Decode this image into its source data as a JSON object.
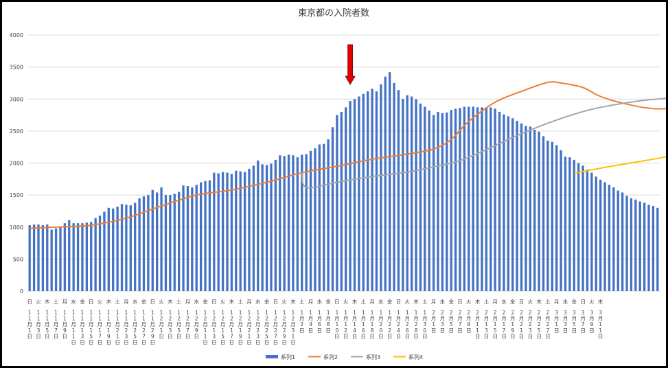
{
  "chart_data": {
    "type": "bar",
    "title": "東京都の入院者数",
    "ylim": [
      0,
      4000
    ],
    "yticks": [
      0,
      500,
      1000,
      1500,
      2000,
      2500,
      3000,
      3500,
      4000
    ],
    "grid": true,
    "legend_position": "bottom",
    "annotations": [
      {
        "type": "arrow",
        "color": "#e00000",
        "direction": "down",
        "category_index": 73
      }
    ],
    "weekday_labels": [
      "日",
      "火",
      "木",
      "土",
      "月",
      "水",
      "金",
      "日",
      "火",
      "木",
      "土",
      "月",
      "水",
      "金",
      "日",
      "火",
      "木",
      "土",
      "月",
      "水",
      "金",
      "日",
      "火",
      "木",
      "土",
      "月",
      "水",
      "金",
      "日",
      "火",
      "木",
      "土",
      "月",
      "水",
      "金",
      "日",
      "火",
      "木",
      "土",
      "月",
      "水",
      "金",
      "日",
      "火",
      "木",
      "土",
      "月",
      "水",
      "金",
      "日",
      "火",
      "木",
      "土",
      "月",
      "水",
      "金",
      "日",
      "火",
      "木",
      "土",
      "月",
      "水",
      "金",
      "日",
      "火",
      "木"
    ],
    "date_labels": [
      "11月1日",
      "11月3日",
      "11月5日",
      "11月7日",
      "11月9日",
      "11月11日",
      "11月13日",
      "11月15日",
      "11月17日",
      "11月19日",
      "11月21日",
      "11月23日",
      "11月25日",
      "11月27日",
      "11月29日",
      "12月1日",
      "12月3日",
      "12月5日",
      "12月7日",
      "12月9日",
      "12月11日",
      "12月13日",
      "12月15日",
      "12月17日",
      "12月19日",
      "12月21日",
      "12月23日",
      "12月25日",
      "12月27日",
      "12月29日",
      "12月31日",
      "1月2日",
      "1月4日",
      "1月6日",
      "1月8日",
      "1月10日",
      "1月12日",
      "1月14日",
      "1月16日",
      "1月18日",
      "1月20日",
      "1月22日",
      "1月24日",
      "1月26日",
      "1月28日",
      "1月30日",
      "2月1日",
      "2月3日",
      "2月5日",
      "2月7日",
      "2月9日",
      "2月11日",
      "2月13日",
      "2月15日",
      "2月17日",
      "2月19日",
      "2月21日",
      "2月23日",
      "2月25日",
      "2月27日",
      "3月1日",
      "3月3日",
      "3月5日",
      "3月7日",
      "3月9日",
      "3月11日"
    ],
    "series": [
      {
        "name": "系列1",
        "type": "bar",
        "color": "#4472c4",
        "values": [
          1030,
          1040,
          1040,
          1030,
          1040,
          960,
          980,
          1000,
          1060,
          1110,
          1060,
          1060,
          1060,
          1070,
          1080,
          1140,
          1180,
          1240,
          1300,
          1290,
          1320,
          1360,
          1350,
          1340,
          1380,
          1450,
          1480,
          1500,
          1580,
          1540,
          1620,
          1500,
          1500,
          1520,
          1550,
          1650,
          1640,
          1620,
          1660,
          1700,
          1720,
          1730,
          1850,
          1840,
          1860,
          1850,
          1830,
          1880,
          1870,
          1860,
          1910,
          1960,
          2040,
          1980,
          1970,
          1990,
          2050,
          2120,
          2110,
          2130,
          2120,
          2090,
          2130,
          2140,
          2190,
          2230,
          2290,
          2300,
          2370,
          2560,
          2750,
          2800,
          2870,
          2970,
          3000,
          3040,
          3080,
          3120,
          3160,
          3120,
          3230,
          3350,
          3420,
          3250,
          3140,
          3000,
          3060,
          3040,
          3000,
          2930,
          2880,
          2820,
          2750,
          2800,
          2780,
          2790,
          2830,
          2850,
          2860,
          2880,
          2880,
          2880,
          2870,
          2870,
          2860,
          2870,
          2850,
          2800,
          2760,
          2730,
          2700,
          2660,
          2620,
          2580,
          2570,
          2520,
          2490,
          2420,
          2350,
          2330,
          2280,
          2200,
          2100,
          2090,
          2050,
          2000,
          1960,
          1900,
          1850,
          1790,
          1740,
          1700,
          1660,
          1620,
          1570,
          1540,
          1490,
          1450,
          1430,
          1400,
          1380,
          1350,
          1330,
          1300
        ]
      },
      {
        "name": "系列2",
        "type": "line",
        "color": "#ed7d31",
        "points": [
          [
            0,
            980
          ],
          [
            6,
            1000
          ],
          [
            14,
            1030
          ],
          [
            22,
            1140
          ],
          [
            30,
            1330
          ],
          [
            38,
            1500
          ],
          [
            46,
            1580
          ],
          [
            54,
            1700
          ],
          [
            62,
            1850
          ],
          [
            70,
            1950
          ],
          [
            78,
            2060
          ],
          [
            86,
            2140
          ],
          [
            92,
            2220
          ],
          [
            96,
            2370
          ],
          [
            100,
            2650
          ],
          [
            106,
            2950
          ],
          [
            112,
            3120
          ],
          [
            118,
            3260
          ],
          [
            121,
            3250
          ],
          [
            126,
            3180
          ],
          [
            130,
            3040
          ],
          [
            136,
            2920
          ],
          [
            142,
            2850
          ],
          [
            148,
            2860
          ],
          [
            154,
            2890
          ],
          [
            160,
            2870
          ],
          [
            166,
            2790
          ],
          [
            172,
            2670
          ],
          [
            178,
            2550
          ],
          [
            184,
            2400
          ],
          [
            190,
            2220
          ],
          [
            196,
            2050
          ],
          [
            202,
            1870
          ],
          [
            208,
            1710
          ],
          [
            214,
            1560
          ],
          [
            220,
            1440
          ],
          [
            226,
            1370
          ]
        ]
      },
      {
        "name": "系列3",
        "type": "line",
        "color": "#a5a5a5",
        "points": [
          [
            62,
            1870
          ],
          [
            63,
            1620
          ],
          [
            70,
            1700
          ],
          [
            78,
            1790
          ],
          [
            86,
            1860
          ],
          [
            92,
            1940
          ],
          [
            98,
            2040
          ],
          [
            104,
            2210
          ],
          [
            110,
            2400
          ],
          [
            116,
            2570
          ],
          [
            122,
            2720
          ],
          [
            128,
            2840
          ],
          [
            134,
            2920
          ],
          [
            140,
            2980
          ],
          [
            146,
            3010
          ],
          [
            152,
            3000
          ],
          [
            158,
            2960
          ],
          [
            164,
            2900
          ],
          [
            170,
            2830
          ],
          [
            176,
            2760
          ],
          [
            182,
            2690
          ],
          [
            188,
            2620
          ],
          [
            194,
            2530
          ],
          [
            200,
            2420
          ],
          [
            206,
            2300
          ],
          [
            212,
            2150
          ],
          [
            220,
            1960
          ],
          [
            226,
            1840
          ]
        ]
      },
      {
        "name": "系列4",
        "type": "line",
        "color": "#ffc000",
        "points": [
          [
            124,
            1840
          ],
          [
            130,
            1920
          ],
          [
            136,
            1990
          ],
          [
            142,
            2060
          ],
          [
            148,
            2140
          ],
          [
            154,
            2220
          ],
          [
            160,
            2300
          ],
          [
            166,
            2370
          ],
          [
            172,
            2430
          ],
          [
            178,
            2460
          ],
          [
            184,
            2480
          ],
          [
            190,
            2500
          ],
          [
            196,
            2510
          ],
          [
            202,
            2510
          ],
          [
            208,
            2500
          ],
          [
            214,
            2490
          ],
          [
            220,
            2470
          ],
          [
            226,
            2440
          ]
        ]
      }
    ]
  }
}
